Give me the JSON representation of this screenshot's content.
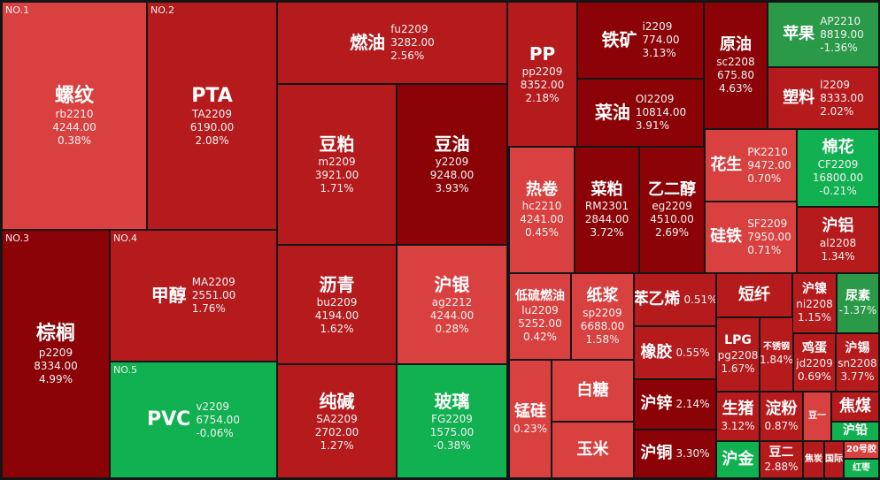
{
  "colors": {
    "background": "#151515",
    "up_strong": "#8b0306",
    "up_mid": "#b51a1c",
    "up_light": "#d94040",
    "down_green": "#2a9a48",
    "down_green_bright": "#11b050"
  },
  "rank_labels": [
    "NO.1",
    "NO.2",
    "NO.3",
    "NO.4",
    "NO.5"
  ],
  "tiles": [
    {
      "name": "螺纹",
      "code": "rb2210",
      "price": "4244.00",
      "pct": "0.38%"
    },
    {
      "name": "PTA",
      "code": "TA2209",
      "price": "6190.00",
      "pct": "2.08%"
    },
    {
      "name": "燃油",
      "code": "fu2209",
      "price": "3282.00",
      "pct": "2.56%"
    },
    {
      "name": "PP",
      "code": "pp2209",
      "price": "8352.00",
      "pct": "2.18%"
    },
    {
      "name": "铁矿",
      "code": "i2209",
      "price": "774.00",
      "pct": "3.13%"
    },
    {
      "name": "原油",
      "code": "sc2208",
      "price": "675.80",
      "pct": "4.63%"
    },
    {
      "name": "苹果",
      "code": "AP2210",
      "price": "8819.00",
      "pct": "-1.36%"
    },
    {
      "name": "豆粕",
      "code": "m2209",
      "price": "3921.00",
      "pct": "1.71%"
    },
    {
      "name": "豆油",
      "code": "y2209",
      "price": "9248.00",
      "pct": "3.93%"
    },
    {
      "name": "菜油",
      "code": "OI2209",
      "price": "10814.00",
      "pct": "3.91%"
    },
    {
      "name": "塑料",
      "code": "l2209",
      "price": "8333.00",
      "pct": "2.02%"
    },
    {
      "name": "花生",
      "code": "PK2210",
      "price": "9472.00",
      "pct": "0.70%"
    },
    {
      "name": "棉花",
      "code": "CF2209",
      "price": "16800.00",
      "pct": "-0.21%"
    },
    {
      "name": "热卷",
      "code": "hc2210",
      "price": "4241.00",
      "pct": "0.45%"
    },
    {
      "name": "菜粕",
      "code": "RM2301",
      "price": "2844.00",
      "pct": "3.72%"
    },
    {
      "name": "乙二醇",
      "code": "eg2209",
      "price": "4510.00",
      "pct": "2.69%"
    },
    {
      "name": "硅铁",
      "code": "SF2209",
      "price": "7950.00",
      "pct": "0.71%"
    },
    {
      "name": "沪铝",
      "code": "al2208",
      "price": "",
      "pct": "1.34%"
    },
    {
      "name": "棕榈",
      "code": "p2209",
      "price": "8334.00",
      "pct": "4.99%"
    },
    {
      "name": "甲醇",
      "code": "MA2209",
      "price": "2551.00",
      "pct": "1.76%"
    },
    {
      "name": "沥青",
      "code": "bu2209",
      "price": "4194.00",
      "pct": "1.62%"
    },
    {
      "name": "沪银",
      "code": "ag2212",
      "price": "4244.00",
      "pct": "0.28%"
    },
    {
      "name": "低硫燃油",
      "code": "lu2209",
      "price": "5252.00",
      "pct": "0.42%"
    },
    {
      "name": "纸浆",
      "code": "sp2209",
      "price": "6688.00",
      "pct": "1.58%"
    },
    {
      "name": "苯乙烯",
      "code": "",
      "price": "",
      "pct": "0.51%"
    },
    {
      "name": "短纤",
      "code": "",
      "price": "",
      "pct": ""
    },
    {
      "name": "沪镍",
      "code": "ni2208",
      "price": "",
      "pct": "1.15%"
    },
    {
      "name": "尿素",
      "code": "",
      "price": "",
      "pct": "-1.37%"
    },
    {
      "name": "橡胶",
      "code": "",
      "price": "",
      "pct": "0.55%"
    },
    {
      "name": "LPG",
      "code": "pg2208",
      "price": "",
      "pct": "1.67%"
    },
    {
      "name": "不锈钢",
      "code": "",
      "price": "",
      "pct": "1.84%"
    },
    {
      "name": "鸡蛋",
      "code": "jd2209",
      "price": "",
      "pct": "0.69%"
    },
    {
      "name": "沪锡",
      "code": "sn2208",
      "price": "",
      "pct": "3.77%"
    },
    {
      "name": "PVC",
      "code": "v2209",
      "price": "6754.00",
      "pct": "-0.06%"
    },
    {
      "name": "纯碱",
      "code": "SA2209",
      "price": "2702.00",
      "pct": "1.27%"
    },
    {
      "name": "玻璃",
      "code": "FG2209",
      "price": "1575.00",
      "pct": "-0.38%"
    },
    {
      "name": "锰硅",
      "code": "",
      "price": "",
      "pct": "0.23%"
    },
    {
      "name": "白糖",
      "code": "",
      "price": "",
      "pct": ""
    },
    {
      "name": "沪锌",
      "code": "",
      "price": "",
      "pct": "2.14%"
    },
    {
      "name": "生猪",
      "code": "",
      "price": "",
      "pct": "3.12%"
    },
    {
      "name": "淀粉",
      "code": "",
      "price": "",
      "pct": "0.87%"
    },
    {
      "name": "豆一",
      "code": "",
      "price": "",
      "pct": ""
    },
    {
      "name": "焦煤",
      "code": "",
      "price": "",
      "pct": ""
    },
    {
      "name": "沪铅",
      "code": "",
      "price": "",
      "pct": ""
    },
    {
      "name": "玉米",
      "code": "",
      "price": "",
      "pct": ""
    },
    {
      "name": "沪铜",
      "code": "",
      "price": "",
      "pct": "3.30%"
    },
    {
      "name": "沪金",
      "code": "",
      "price": "",
      "pct": ""
    },
    {
      "name": "豆二",
      "code": "",
      "price": "",
      "pct": "2.88%"
    },
    {
      "name": "焦炭",
      "code": "",
      "price": "",
      "pct": ""
    },
    {
      "name": "国际",
      "code": "",
      "price": "",
      "pct": ""
    },
    {
      "name": "20号胶",
      "code": "",
      "price": "",
      "pct": ""
    },
    {
      "name": "红枣",
      "code": "",
      "price": "",
      "pct": ""
    }
  ]
}
